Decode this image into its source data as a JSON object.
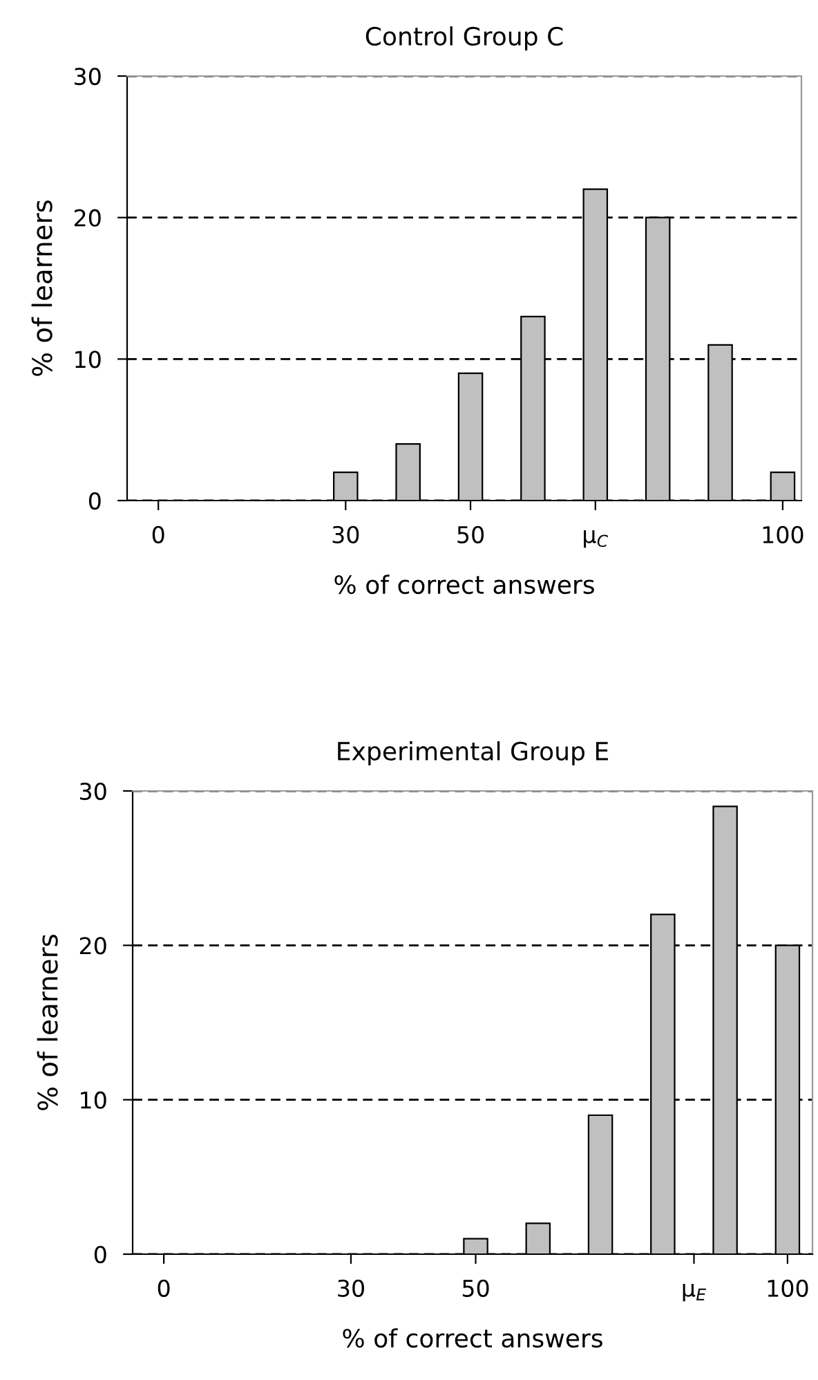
{
  "chart_data": [
    {
      "type": "bar",
      "title": "Control Group C",
      "xlabel": "% of correct answers",
      "ylabel": "% of learners",
      "x": [
        0,
        10,
        20,
        30,
        40,
        50,
        60,
        70,
        80,
        90,
        100
      ],
      "values": [
        0,
        0,
        0,
        2,
        4,
        9,
        13,
        22,
        20,
        11,
        2
      ],
      "color": "#c0c0c0",
      "xlim": [
        -5,
        103
      ],
      "xticks": [
        0,
        30,
        50,
        {
          "value": 70,
          "label": "μ$_{C}$"
        },
        100
      ],
      "ylim": [
        0,
        30
      ],
      "yticks": [
        0,
        10,
        20,
        30
      ],
      "grid": "y",
      "line_style": "dashed"
    },
    {
      "type": "bar",
      "title": "Experimental Group E",
      "xlabel": "% of correct answers",
      "ylabel": "% of learners",
      "x": [
        0,
        10,
        20,
        30,
        40,
        50,
        60,
        70,
        80,
        90,
        100
      ],
      "values": [
        0,
        0,
        0,
        0,
        0,
        1,
        2,
        9,
        22,
        29,
        20
      ],
      "color": "#c0c0c0",
      "xlim": [
        -5,
        104
      ],
      "xticks": [
        0,
        30,
        50,
        {
          "value": 85,
          "label": "μ$_{E}$"
        },
        100
      ],
      "ylim": [
        0,
        30
      ],
      "yticks": [
        0,
        10,
        20,
        30
      ],
      "grid": "y",
      "line_style": "dashed"
    }
  ]
}
